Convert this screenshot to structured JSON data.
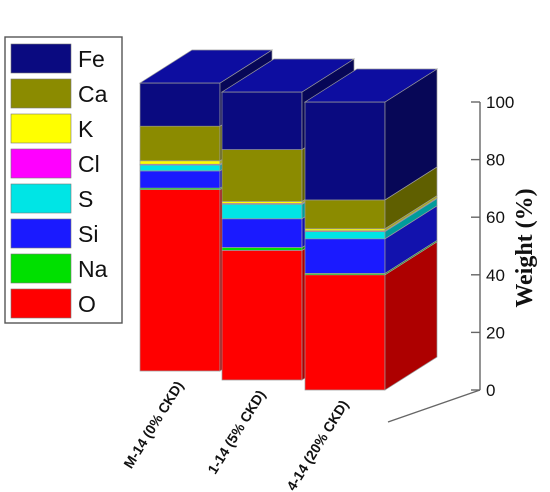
{
  "chart_data": {
    "type": "bar",
    "subtype": "stacked-3d",
    "title": "",
    "xlabel": "",
    "ylabel": "Weight (%)",
    "ylim": [
      0,
      100
    ],
    "yticks": [
      0,
      20,
      40,
      60,
      80,
      100
    ],
    "legend_position": "left",
    "categories": [
      "M-14 (0% CKD)",
      "1-14 (5% CKD)",
      "4-14 (20% CKD)"
    ],
    "series": [
      {
        "name": "O",
        "color": "#ff0000",
        "values": [
          63,
          45,
          40
        ]
      },
      {
        "name": "Na",
        "color": "#00e000",
        "values": [
          0.5,
          1,
          0.5
        ]
      },
      {
        "name": "Si",
        "color": "#1a1aff",
        "values": [
          6,
          10,
          12
        ]
      },
      {
        "name": "S",
        "color": "#00e5e5",
        "values": [
          2,
          5,
          2.5
        ]
      },
      {
        "name": "Cl",
        "color": "#ff00ff",
        "values": [
          0.3,
          0.3,
          0.3
        ]
      },
      {
        "name": "K",
        "color": "#ffff00",
        "values": [
          1.2,
          0.7,
          0.7
        ]
      },
      {
        "name": "Ca",
        "color": "#8b8b00",
        "values": [
          12,
          18,
          10
        ]
      },
      {
        "name": "Fe",
        "color": "#0a0a80",
        "values": [
          15,
          20,
          34
        ]
      }
    ]
  }
}
